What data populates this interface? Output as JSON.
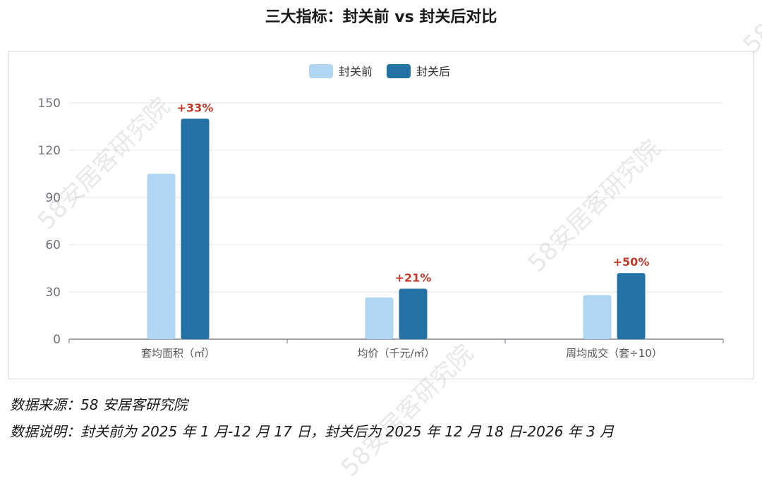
{
  "title": "三大指标：封关前 vs 封关后对比",
  "watermark": "58安居客研究院",
  "notes": {
    "source": "数据来源：58 安居客研究院",
    "explanation": "数据说明：封关前为 2025 年 1 月-12 月 17 日，封关后为 2025 年 12 月 18 日-2026 年 3 月"
  },
  "chart_data": {
    "type": "bar",
    "categories": [
      "套均面积（㎡）",
      "均价（千元/㎡）",
      "周均成交（套÷10）"
    ],
    "series": [
      {
        "name": "封关前",
        "values": [
          105,
          26.5,
          28
        ],
        "color": "#b1d6f1"
      },
      {
        "name": "封关后",
        "values": [
          140,
          32,
          42
        ],
        "color": "#2372a6"
      }
    ],
    "annotations": [
      "+33%",
      "+21%",
      "+50%"
    ],
    "annotation_color": "#c0392b",
    "yticks": [
      0,
      30,
      60,
      90,
      120,
      150
    ],
    "ylim": [
      0,
      150
    ],
    "grid": true,
    "legend": "top-center"
  }
}
